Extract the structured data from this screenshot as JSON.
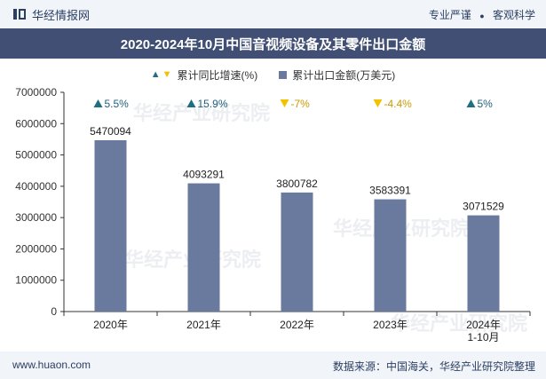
{
  "header": {
    "brand": "华经情报网",
    "tag1": "专业严谨",
    "tag2": "客观科学"
  },
  "colors": {
    "bar": "#6a799e",
    "up": "#1f6f80",
    "down": "#f2c200",
    "titlebar": "#404f73"
  },
  "chart_data": {
    "type": "bar",
    "title": "2020-2024年10月中国音视频设备及其零件出口金额",
    "categories": [
      "2020年",
      "2021年",
      "2022年",
      "2023年",
      "2024年\n1-10月"
    ],
    "ylim": [
      0,
      7000000
    ],
    "yticks": [
      0,
      1000000,
      2000000,
      3000000,
      4000000,
      5000000,
      6000000,
      7000000
    ],
    "grid": false,
    "legend_position": "top",
    "series": [
      {
        "name": "累计出口金额(万美元)",
        "values": [
          5470094,
          4093291,
          3800782,
          3583391,
          3071529
        ],
        "labels": [
          "5470094",
          "4093291",
          "3800782",
          "3583391",
          "3071529"
        ]
      },
      {
        "name": "累计同比增速(%)",
        "values": [
          5.5,
          15.9,
          -7,
          -4.4,
          5
        ],
        "labels": [
          "5.5%",
          "15.9%",
          "-7%",
          "-4.4%",
          "5%"
        ]
      }
    ]
  },
  "watermark": "华经产业研究院",
  "footer": {
    "url": "www.huaon.com",
    "source": "数据来源：中国海关，华经产业研究院整理"
  }
}
